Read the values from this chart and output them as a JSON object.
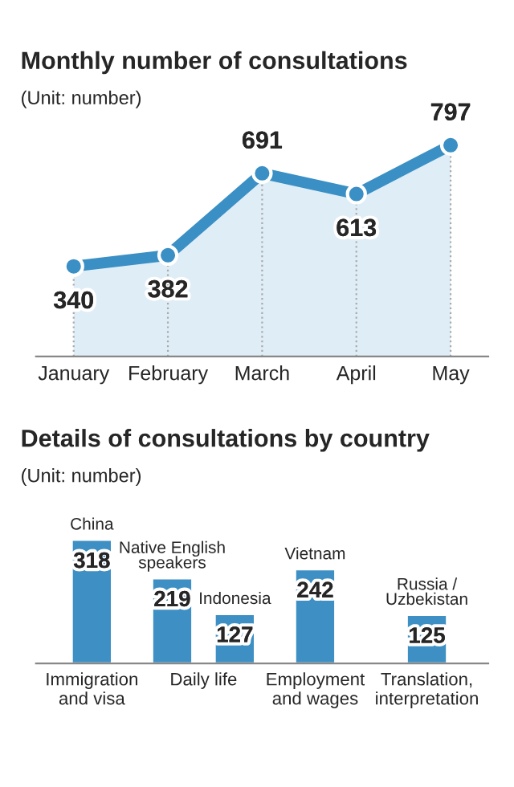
{
  "chart_data": [
    {
      "type": "area",
      "title": "Monthly number of consultations",
      "subtitle": "(Unit: number)",
      "categories": [
        "January",
        "February",
        "March",
        "April",
        "May"
      ],
      "series": [
        {
          "color": "#3a8fc5",
          "values": [
            340,
            382,
            691,
            613,
            797
          ]
        }
      ],
      "data_labels": true,
      "marker": "circle",
      "line_style": "solid",
      "grid": "x",
      "legend": false
    },
    {
      "type": "bar",
      "title": "Details of consultations by country",
      "subtitle": "(Unit: number)",
      "categories": [
        "Immigration and visa",
        "Daily life",
        "Employment and wages",
        "Translation, interpretation"
      ],
      "series": [
        {
          "name": "China",
          "color": "#3d8fc4",
          "values": [
            318,
            null,
            null,
            null
          ]
        },
        {
          "name": "Native English speakers",
          "color": "#3d8fc4",
          "values": [
            null,
            219,
            null,
            null
          ]
        },
        {
          "name": "Indonesia",
          "color": "#3d8fc4",
          "values": [
            null,
            127,
            null,
            null
          ]
        },
        {
          "name": "Vietnam",
          "color": "#3d8fc4",
          "values": [
            null,
            null,
            242,
            null
          ]
        },
        {
          "name": "Russia / Uzbekistan",
          "color": "#3d8fc4",
          "values": [
            null,
            null,
            null,
            125
          ]
        }
      ],
      "data_labels": true,
      "legend": false
    }
  ]
}
